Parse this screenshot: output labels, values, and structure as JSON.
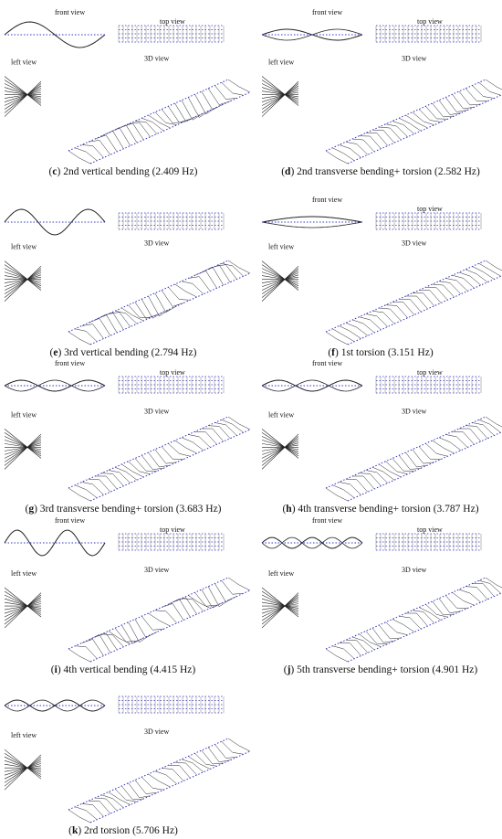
{
  "panels": [
    {
      "caption_parts": [
        "(",
        "c",
        ") 2nd vertical bending (2.409 Hz)"
      ],
      "views": [
        "front view",
        "top view",
        "left view",
        "3D view"
      ]
    },
    {
      "caption_parts": [
        "(",
        "d",
        ") 2nd transverse bending+ torsion (2.582 Hz)"
      ],
      "views": [
        "front view",
        "top view",
        "left view",
        "3D view"
      ]
    },
    {
      "caption_parts": [
        "(",
        "e",
        ") 3rd vertical bending (2.794 Hz)"
      ],
      "views": [
        null,
        null,
        "left view",
        "3D view"
      ]
    },
    {
      "caption_parts": [
        "(",
        "f",
        ") 1st torsion (3.151 Hz)"
      ],
      "views": [
        "front view",
        "top view",
        "left view",
        "3D view"
      ]
    },
    {
      "caption_parts": [
        "(",
        "g",
        ") 3rd transverse bending+ torsion (3.683 Hz)"
      ],
      "views": [
        "front view",
        "top view",
        "left view",
        "3D view"
      ]
    },
    {
      "caption_parts": [
        "(",
        "h",
        ") 4th transverse bending+ torsion (3.787 Hz)"
      ],
      "views": [
        "front view",
        "top view",
        "left view",
        "3D view"
      ]
    },
    {
      "caption_parts": [
        "(",
        "i",
        ") 4th vertical bending (4.415 Hz)"
      ],
      "views": [
        "front view",
        "top view",
        "left view",
        "3D view"
      ]
    },
    {
      "caption_parts": [
        "(",
        "j",
        ") 5th transverse bending+ torsion (4.901 Hz)"
      ],
      "views": [
        "front view",
        "top view",
        "left view",
        "3D view"
      ]
    },
    {
      "caption_parts": [
        "(",
        "k",
        ") 2rd torsion (5.706 Hz)"
      ],
      "views": [
        null,
        null,
        "left view",
        "3D view"
      ]
    }
  ]
}
